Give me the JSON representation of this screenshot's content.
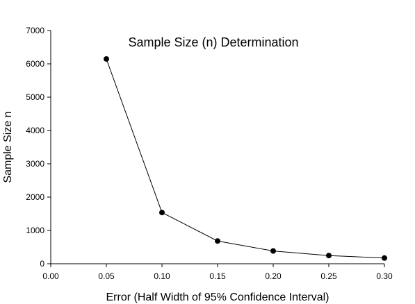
{
  "chart_data": {
    "type": "line",
    "title": "Sample Size (n) Determination",
    "xlabel": "Error (Half Width of 95% Confidence Interval)",
    "ylabel": "Sample Size n",
    "x": [
      0.05,
      0.1,
      0.15,
      0.2,
      0.25,
      0.3
    ],
    "series": [
      {
        "values": [
          6147,
          1537,
          683,
          384,
          246,
          171
        ]
      }
    ],
    "xlim": [
      0.0,
      0.3
    ],
    "ylim": [
      0,
      7000
    ],
    "xticks": [
      "0.00",
      "0.05",
      "0.10",
      "0.15",
      "0.20",
      "0.25",
      "0.30"
    ],
    "yticks": [
      "0",
      "1000",
      "2000",
      "3000",
      "4000",
      "5000",
      "6000",
      "7000"
    ],
    "grid": false,
    "legend": "none",
    "colors": {
      "line": "#000000",
      "marker": "#000000",
      "axis": "#000000"
    }
  }
}
